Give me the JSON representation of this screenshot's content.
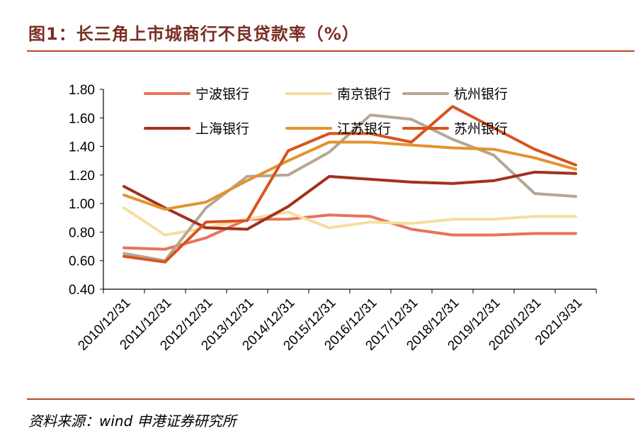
{
  "header": {
    "title": "图1：长三角上市城商行不良贷款率（%）"
  },
  "footer": {
    "source": "资料来源：wind  申港证券研究所"
  },
  "chart_data": {
    "type": "line",
    "title": "图1：长三角上市城商行不良贷款率（%）",
    "xlabel": "",
    "ylabel": "",
    "ylim": [
      0.4,
      1.8
    ],
    "yticks": [
      "0.40",
      "0.60",
      "0.80",
      "1.00",
      "1.20",
      "1.40",
      "1.60",
      "1.80"
    ],
    "categories": [
      "2010/12/31",
      "2011/12/31",
      "2012/12/31",
      "2013/12/31",
      "2014/12/31",
      "2015/12/31",
      "2016/12/31",
      "2017/12/31",
      "2018/12/31",
      "2019/12/31",
      "2020/12/31",
      "2021/3/31"
    ],
    "grid": false,
    "legend_position": "top",
    "series": [
      {
        "name": "宁波银行",
        "color": "#e8735a",
        "values": [
          0.69,
          0.68,
          0.76,
          0.89,
          0.89,
          0.92,
          0.91,
          0.82,
          0.78,
          0.78,
          0.79,
          0.79
        ]
      },
      {
        "name": "南京银行",
        "color": "#f6dea0",
        "values": [
          0.97,
          0.78,
          0.83,
          0.89,
          0.94,
          0.83,
          0.87,
          0.86,
          0.89,
          0.89,
          0.91,
          0.91
        ]
      },
      {
        "name": "杭州银行",
        "color": "#b5a694",
        "values": [
          0.65,
          0.6,
          0.97,
          1.19,
          1.2,
          1.36,
          1.62,
          1.59,
          1.45,
          1.34,
          1.07,
          1.05
        ]
      },
      {
        "name": "上海银行",
        "color": "#a1321c",
        "values": [
          1.12,
          0.97,
          0.83,
          0.82,
          0.98,
          1.19,
          1.17,
          1.15,
          1.14,
          1.16,
          1.22,
          1.21
        ]
      },
      {
        "name": "江苏银行",
        "color": "#e3932f",
        "values": [
          1.06,
          0.96,
          1.01,
          1.16,
          1.3,
          1.43,
          1.43,
          1.41,
          1.39,
          1.38,
          1.32,
          1.24
        ]
      },
      {
        "name": "苏州银行",
        "color": "#d9531e",
        "values": [
          0.63,
          0.59,
          0.87,
          0.88,
          1.37,
          1.49,
          1.49,
          1.43,
          1.68,
          1.53,
          1.38,
          1.27
        ]
      }
    ]
  }
}
